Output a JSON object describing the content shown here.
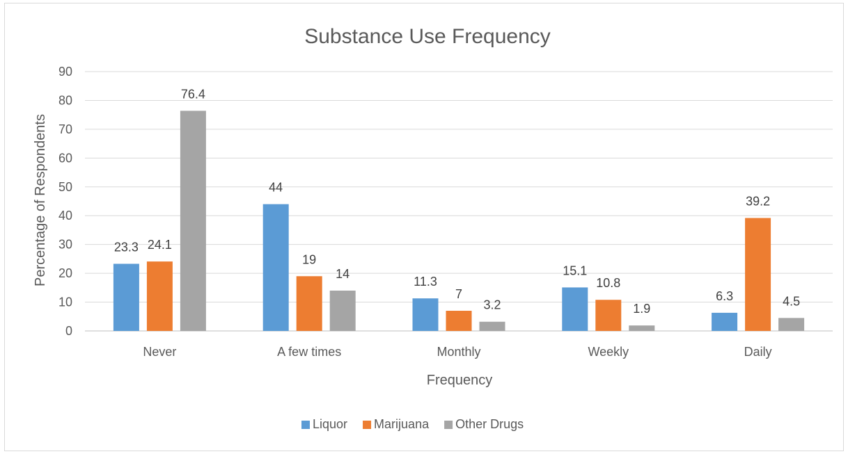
{
  "chart_data": {
    "type": "bar",
    "title": "Substance Use Frequency",
    "xlabel": "Frequency",
    "ylabel": "Percentage of Respondents",
    "ylim": [
      0,
      90
    ],
    "yticks": [
      0,
      10,
      20,
      30,
      40,
      50,
      60,
      70,
      80,
      90
    ],
    "grid": true,
    "legend_position": "bottom",
    "categories": [
      "Never",
      "A few times",
      "Monthly",
      "Weekly",
      "Daily"
    ],
    "series": [
      {
        "name": "Liquor",
        "color": "#5b9bd5",
        "values": [
          23.3,
          44,
          11.3,
          15.1,
          6.3
        ]
      },
      {
        "name": "Marijuana",
        "color": "#ed7d31",
        "values": [
          24.1,
          19,
          7,
          10.8,
          39.2
        ]
      },
      {
        "name": "Other Drugs",
        "color": "#a5a5a5",
        "values": [
          76.4,
          14,
          3.2,
          1.9,
          4.5
        ]
      }
    ]
  }
}
